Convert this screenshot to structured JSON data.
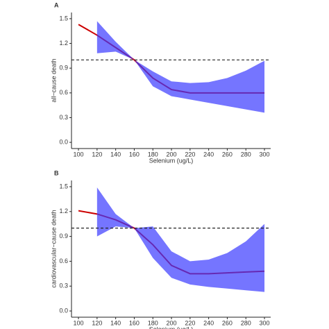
{
  "chart_data": [
    {
      "type": "line",
      "label": "A",
      "xlabel": "Selenium (ug/L)",
      "ylabel": "all−cause death",
      "line": {
        "x": [
          100,
          120,
          140,
          160,
          180,
          200,
          220,
          240,
          260,
          280,
          300
        ],
        "values": [
          1.43,
          1.3,
          1.15,
          1.0,
          0.78,
          0.64,
          0.6,
          0.6,
          0.6,
          0.6,
          0.6
        ],
        "color": "#cc0000"
      },
      "band": {
        "x": [
          120,
          140,
          160,
          180,
          200,
          220,
          240,
          260,
          280,
          300
        ],
        "upper": [
          1.47,
          1.22,
          1.0,
          0.86,
          0.74,
          0.72,
          0.73,
          0.78,
          0.87,
          0.99
        ],
        "lower": [
          1.08,
          1.1,
          1.0,
          0.68,
          0.56,
          0.52,
          0.48,
          0.44,
          0.4,
          0.36
        ],
        "color": "#3a3aff"
      },
      "hline": 1.0,
      "xlim": [
        92.5,
        306.7
      ],
      "xticks": [
        100,
        120,
        140,
        160,
        180,
        200,
        220,
        240,
        260,
        280,
        300
      ],
      "ylim": [
        -0.075,
        1.575
      ],
      "yticks": [
        {
          "value": 0,
          "label": "0.0"
        },
        0.3,
        0.6,
        0.9,
        1.2,
        1.5
      ]
    },
    {
      "type": "line",
      "label": "B",
      "xlabel": "Selenium (ug/L)",
      "ylabel": "cardiovascular−cause death",
      "line": {
        "x": [
          100,
          120,
          140,
          160,
          180,
          200,
          220,
          240,
          260,
          280,
          300
        ],
        "values": [
          1.21,
          1.17,
          1.1,
          1.0,
          0.8,
          0.55,
          0.45,
          0.45,
          0.46,
          0.47,
          0.48
        ],
        "color": "#cc0000"
      },
      "band": {
        "x": [
          120,
          140,
          160,
          180,
          200,
          220,
          240,
          260,
          280,
          300
        ],
        "upper": [
          1.49,
          1.17,
          1.0,
          1.02,
          0.72,
          0.6,
          0.62,
          0.7,
          0.84,
          1.05
        ],
        "lower": [
          0.9,
          1.02,
          1.0,
          0.64,
          0.4,
          0.32,
          0.29,
          0.27,
          0.25,
          0.23
        ],
        "color": "#3a3aff"
      },
      "hline": 1.0,
      "xlim": [
        92.5,
        306.7
      ],
      "xticks": [
        100,
        120,
        140,
        160,
        180,
        200,
        220,
        240,
        260,
        280,
        300
      ],
      "ylim": [
        -0.075,
        1.575
      ],
      "yticks": [
        {
          "value": 0,
          "label": "0.0"
        },
        0.3,
        0.6,
        0.9,
        1.2,
        1.5
      ]
    }
  ]
}
